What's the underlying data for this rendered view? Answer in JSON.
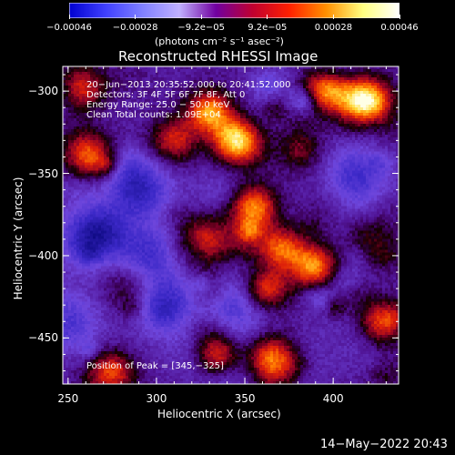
{
  "colorbar": {
    "ticks": [
      "−0.00046",
      "−0.00028",
      "−9.2e−05",
      "9.2e−05",
      "0.00028",
      "0.00046"
    ],
    "unit_label": "(photons cm⁻² s⁻¹ asec⁻²)",
    "colors": [
      "#0000d0",
      "#4040ff",
      "#8080ff",
      "#c0b0ff",
      "#7000a0",
      "#c00030",
      "#ff2000",
      "#ff9000",
      "#ffff80",
      "#ffffff"
    ]
  },
  "chart_data": {
    "type": "heatmap",
    "title": "Reconstructed RHESSI Image",
    "xlabel": "Heliocentric X (arcsec)",
    "ylabel": "Heliocentric Y (arcsec)",
    "xlim": [
      247,
      437
    ],
    "ylim": [
      -478,
      -285
    ],
    "xticks": [
      250,
      300,
      350,
      400
    ],
    "yticks": [
      -300,
      -350,
      -400,
      -450
    ],
    "xtick_labels": [
      "250",
      "300",
      "350",
      "400"
    ],
    "ytick_labels": [
      "−300",
      "−350",
      "−400",
      "−450"
    ],
    "annotations": [
      "20−Jun−2013 20:35:52.000 to 20:41:52.000",
      "Detectors: 3F 4F 5F 6F 7F 8F, Att 0",
      "Energy Range: 25.0 − 50.0 keV",
      "Clean      Total counts: 1.09E+04"
    ],
    "peak_label": "Position of Peak = [345,−325]",
    "peak": [
      345,
      -325
    ],
    "bright_regions": [
      {
        "x": 345,
        "y": -330,
        "level": 1.0
      },
      {
        "x": 330,
        "y": -313,
        "level": 0.85
      },
      {
        "x": 395,
        "y": -300,
        "level": 0.7
      },
      {
        "x": 420,
        "y": -305,
        "level": 0.75
      },
      {
        "x": 262,
        "y": -340,
        "level": 0.65
      },
      {
        "x": 258,
        "y": -298,
        "level": 0.55
      },
      {
        "x": 355,
        "y": -370,
        "level": 0.75
      },
      {
        "x": 370,
        "y": -395,
        "level": 0.8
      },
      {
        "x": 390,
        "y": -405,
        "level": 0.75
      },
      {
        "x": 362,
        "y": -420,
        "level": 0.7
      },
      {
        "x": 428,
        "y": -440,
        "level": 0.65
      },
      {
        "x": 335,
        "y": -460,
        "level": 0.75
      },
      {
        "x": 365,
        "y": -462,
        "level": 0.7
      },
      {
        "x": 275,
        "y": -470,
        "level": 0.7
      },
      {
        "x": 310,
        "y": -330,
        "level": 0.55
      },
      {
        "x": 325,
        "y": -395,
        "level": 0.45
      }
    ],
    "dark_regions": [
      {
        "x": 290,
        "y": -360,
        "level": -0.55
      },
      {
        "x": 262,
        "y": -390,
        "level": -0.5
      },
      {
        "x": 295,
        "y": -400,
        "level": -0.45
      },
      {
        "x": 305,
        "y": -430,
        "level": -0.5
      },
      {
        "x": 415,
        "y": -350,
        "level": -0.5
      },
      {
        "x": 345,
        "y": -430,
        "level": -0.4
      },
      {
        "x": 250,
        "y": -440,
        "level": -0.4
      }
    ]
  },
  "footer": {
    "timestamp": "14−May−2022 20:43"
  }
}
